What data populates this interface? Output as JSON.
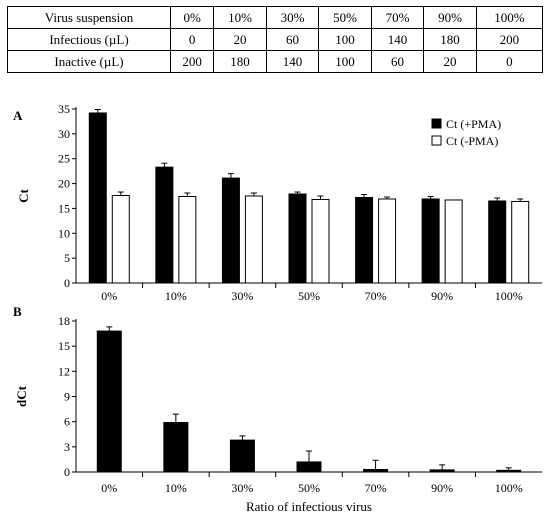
{
  "table": {
    "rows": [
      {
        "label": "Virus suspension",
        "cells": [
          "0%",
          "10%",
          "30%",
          "50%",
          "70%",
          "90%",
          "100%"
        ]
      },
      {
        "label": "Infectious (µL)",
        "cells": [
          "0",
          "20",
          "60",
          "100",
          "140",
          "180",
          "200"
        ]
      },
      {
        "label": "Inactive (µL)",
        "cells": [
          "200",
          "180",
          "140",
          "100",
          "60",
          "20",
          "0"
        ]
      }
    ]
  },
  "chart_data": [
    {
      "type": "bar",
      "panel_label": "A",
      "ylabel": "Ct",
      "xlabel": "",
      "ylim": [
        0,
        35
      ],
      "yticks": [
        0,
        5,
        10,
        15,
        20,
        25,
        30,
        35
      ],
      "categories": [
        "0%",
        "10%",
        "30%",
        "50%",
        "70%",
        "90%",
        "100%"
      ],
      "legend_position": "top-right",
      "series": [
        {
          "name": "Ct (+PMA)",
          "color": "#000000",
          "values": [
            34.2,
            23.3,
            21.1,
            17.9,
            17.2,
            16.9,
            16.5
          ],
          "errors": [
            0.7,
            0.8,
            0.9,
            0.4,
            0.6,
            0.5,
            0.6
          ]
        },
        {
          "name": "Ct (-PMA)",
          "color": "#ffffff",
          "values": [
            17.6,
            17.4,
            17.5,
            16.8,
            16.9,
            16.7,
            16.4
          ],
          "errors": [
            0.7,
            0.7,
            0.6,
            0.7,
            0.4,
            0.0,
            0.5
          ]
        }
      ]
    },
    {
      "type": "bar",
      "panel_label": "B",
      "ylabel": "dCt",
      "xlabel": "Ratio of infectious virus",
      "ylim": [
        0,
        18
      ],
      "yticks": [
        0,
        3,
        6,
        9,
        12,
        15,
        18
      ],
      "categories": [
        "0%",
        "10%",
        "30%",
        "50%",
        "70%",
        "90%",
        "100%"
      ],
      "series": [
        {
          "name": "",
          "color": "#000000",
          "values": [
            16.8,
            5.9,
            3.8,
            1.2,
            0.3,
            0.25,
            0.2
          ],
          "errors": [
            0.5,
            1.0,
            0.5,
            1.3,
            1.1,
            0.6,
            0.3
          ]
        }
      ]
    }
  ]
}
